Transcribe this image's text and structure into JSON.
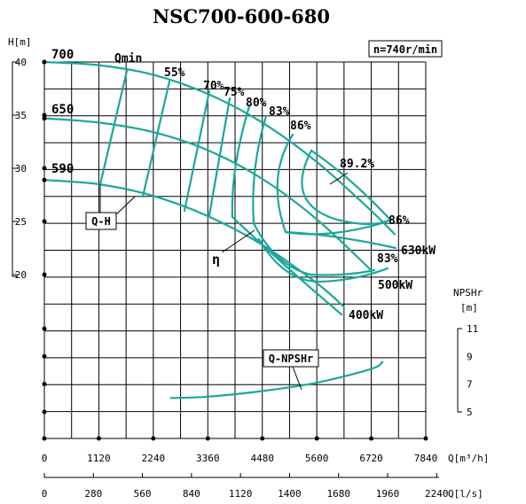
{
  "chart_data": {
    "type": "line",
    "title": "NSC700-600-680",
    "speed_label": "n=740r/min",
    "head_axis": {
      "label": "H[m]",
      "ticks": [
        40,
        35,
        30,
        25,
        20
      ]
    },
    "npsh_axis": {
      "label": "NPSHr",
      "unit": "[m]",
      "ticks": [
        11,
        9,
        7,
        5
      ]
    },
    "flow_m3h_axis": {
      "label": "Q[m³/h]",
      "ticks": [
        0,
        1120,
        2240,
        3360,
        4480,
        5600,
        6720,
        7840
      ]
    },
    "flow_ls_axis": {
      "label": "Q[l/s]",
      "ticks": [
        0,
        280,
        560,
        840,
        1120,
        1400,
        1680,
        1960,
        2240
      ]
    },
    "qh_curves": [
      {
        "impeller": "700",
        "points": [
          [
            0,
            40
          ],
          [
            1120,
            39.7
          ],
          [
            2240,
            38.8
          ],
          [
            3360,
            37.0
          ],
          [
            4480,
            34.3
          ],
          [
            5600,
            30.6
          ],
          [
            6720,
            26.0
          ],
          [
            7200,
            23.8
          ]
        ]
      },
      {
        "impeller": "650",
        "points": [
          [
            0,
            34.7
          ],
          [
            1120,
            34.3
          ],
          [
            2240,
            33.4
          ],
          [
            3360,
            31.7
          ],
          [
            4480,
            29.0
          ],
          [
            5600,
            25.2
          ],
          [
            6720,
            20.4
          ]
        ]
      },
      {
        "impeller": "590",
        "points": [
          [
            0,
            28.9
          ],
          [
            1120,
            28.5
          ],
          [
            2240,
            27.4
          ],
          [
            3360,
            25.5
          ],
          [
            4480,
            22.8
          ],
          [
            5600,
            19.2
          ],
          [
            6150,
            17.0
          ]
        ]
      }
    ],
    "efficiency_labels": [
      "55%",
      "70%",
      "75%",
      "80%",
      "83%",
      "86%",
      "89.2%",
      "86%",
      "83%"
    ],
    "power_labels": [
      "630kW",
      "500kW",
      "400kW"
    ],
    "qmin_label": "Qmin",
    "qh_label": "Q-H",
    "eta_label": "η",
    "npsh_label": "Q-NPSHr",
    "npsh_curve": [
      [
        2600,
        6.0
      ],
      [
        3360,
        6.1
      ],
      [
        4480,
        6.5
      ],
      [
        5600,
        7.1
      ],
      [
        6720,
        8.1
      ],
      [
        6950,
        8.6
      ]
    ]
  }
}
